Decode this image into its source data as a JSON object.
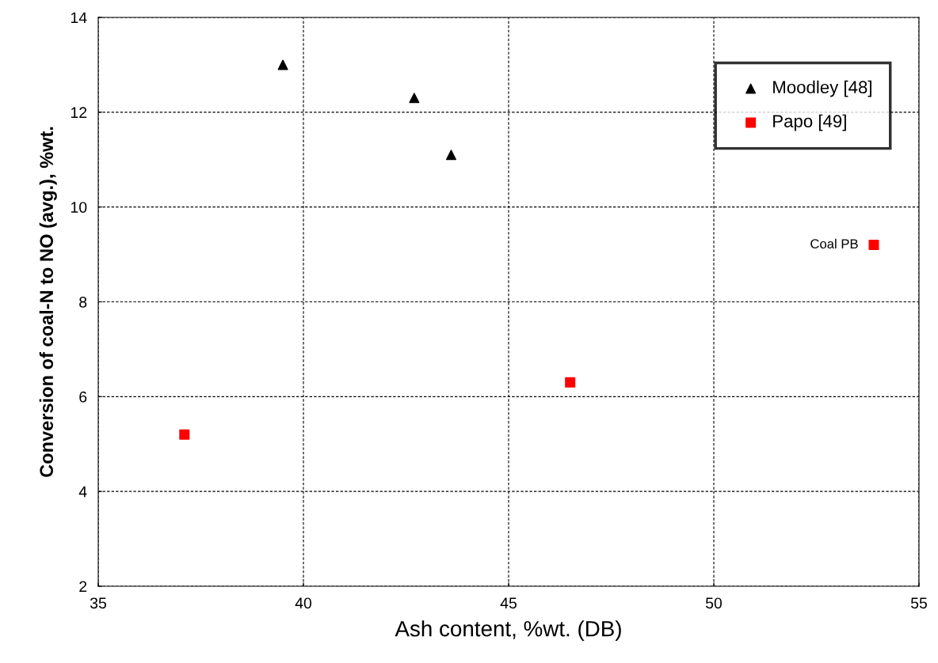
{
  "chart_data": {
    "type": "scatter",
    "xlabel": "Ash content, %wt. (DB)",
    "ylabel": "Conversion of coal-N to NO (avg.), %wt.",
    "series": [
      {
        "name": "Moodley [48]",
        "color": "#000000",
        "marker": "triangle",
        "x": [
          39.5,
          42.7,
          43.6
        ],
        "values": [
          13.0,
          12.3,
          11.1
        ]
      },
      {
        "name": "Papo [49]",
        "color": "#ff0000",
        "marker": "square",
        "x": [
          37.1,
          46.5,
          53.9
        ],
        "values": [
          5.2,
          6.3,
          9.2
        ]
      }
    ],
    "annotations": [
      {
        "text": "Coal PB",
        "x": 53.9,
        "y": 9.2
      }
    ],
    "xlim": [
      35,
      55
    ],
    "xticks": [
      35,
      40,
      45,
      50,
      55
    ],
    "ylim": [
      2,
      14
    ],
    "yticks": [
      2,
      4,
      6,
      8,
      10,
      12,
      14
    ],
    "grid": true,
    "legend": "top right"
  }
}
